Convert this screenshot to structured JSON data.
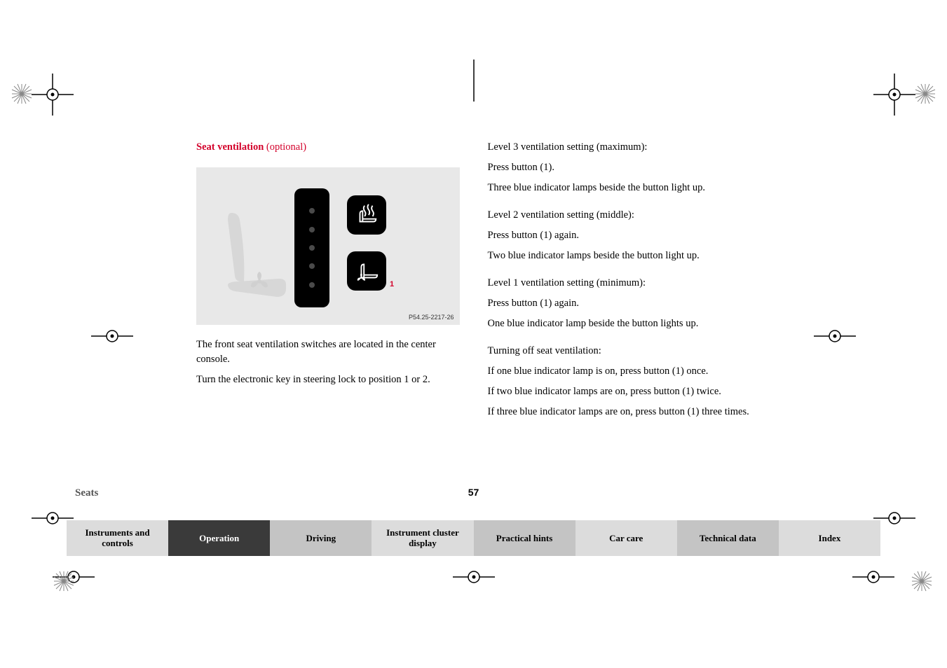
{
  "heading": {
    "title": "Seat ventilation",
    "optional": "(optional)"
  },
  "figure": {
    "caption": "P54.25-2217-26",
    "callout": "1"
  },
  "left_paras": [
    "The front seat ventilation switches are located in the center console.",
    "Turn the electronic key in steering lock to position 1 or 2."
  ],
  "right_blocks": [
    {
      "lines": [
        "Level 3 ventilation setting (maximum):",
        "Press button (1).",
        "Three blue indicator lamps beside the button light up."
      ]
    },
    {
      "lines": [
        "Level 2 ventilation setting (middle):",
        "Press button (1) again.",
        "Two blue indicator lamps beside the button light up."
      ]
    },
    {
      "lines": [
        "Level 1 ventilation setting (minimum):",
        "Press button (1) again.",
        "One blue indicator lamp beside the button lights up."
      ]
    },
    {
      "lines": [
        "Turning off seat ventilation:",
        "If one blue indicator lamp is on, press button (1) once.",
        "If two blue indicator lamps are on, press button (1) twice.",
        "If three blue indicator lamps are on, press button (1) three times."
      ]
    }
  ],
  "footer": {
    "section": "Seats",
    "page": "57",
    "tabs": [
      {
        "label": "Instruments and controls",
        "active": false,
        "alt": false
      },
      {
        "label": "Operation",
        "active": true,
        "alt": false
      },
      {
        "label": "Driving",
        "active": false,
        "alt": true
      },
      {
        "label": "Instrument cluster display",
        "active": false,
        "alt": false
      },
      {
        "label": "Practical hints",
        "active": false,
        "alt": true
      },
      {
        "label": "Car care",
        "active": false,
        "alt": false
      },
      {
        "label": "Technical data",
        "active": false,
        "alt": true
      },
      {
        "label": "Index",
        "active": false,
        "alt": false
      }
    ]
  },
  "colors": {
    "accent": "#d3002a",
    "tab_bg": "#dcdcdc",
    "tab_alt": "#c4c4c4",
    "tab_active": "#3a3a3a",
    "figure_bg": "#e8e8e8"
  }
}
